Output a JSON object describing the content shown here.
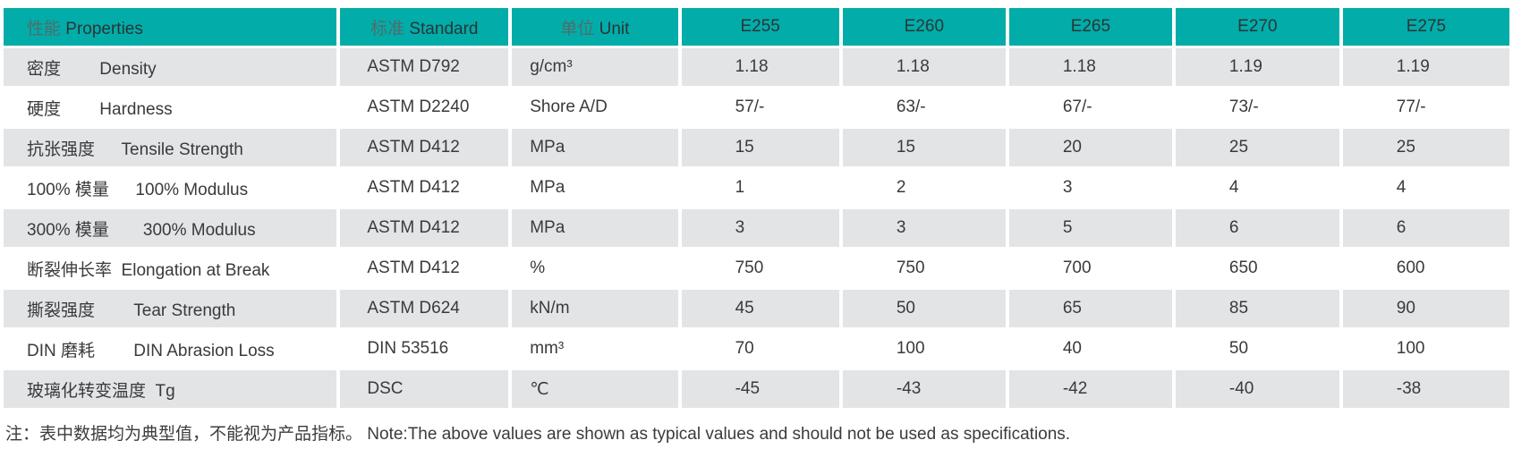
{
  "table": {
    "header": {
      "properties": {
        "cn": "性能",
        "en": "Properties"
      },
      "standard": {
        "cn": "标准",
        "en": "Standard"
      },
      "unit": {
        "cn": "单位",
        "en": "Unit"
      },
      "grades": [
        "E255",
        "E260",
        "E265",
        "E270",
        "E275"
      ]
    },
    "rows": [
      {
        "key": "density",
        "label": "密度　　 Density",
        "standard": "ASTM D792",
        "unit": "g/cm³",
        "values": [
          "1.18",
          "1.18",
          "1.18",
          "1.19",
          "1.19"
        ]
      },
      {
        "key": "hardness",
        "label": "硬度　　 Hardness",
        "standard": "ASTM D2240",
        "unit": "Shore A/D",
        "values": [
          "57/-",
          "63/-",
          "67/-",
          "73/-",
          "77/-"
        ]
      },
      {
        "key": "tensile-strength",
        "label": "抗张强度　  Tensile Strength",
        "standard": "ASTM D412",
        "unit": "MPa",
        "values": [
          "15",
          "15",
          "20",
          "25",
          "25"
        ]
      },
      {
        "key": "modulus-100",
        "label": "100% 模量　  100% Modulus",
        "standard": "ASTM D412",
        "unit": "MPa",
        "values": [
          "1",
          "2",
          "3",
          "4",
          "4"
        ]
      },
      {
        "key": "modulus-300",
        "label": "300% 模量　　300% Modulus",
        "standard": "ASTM D412",
        "unit": "MPa",
        "values": [
          "3",
          "3",
          "5",
          "6",
          "6"
        ]
      },
      {
        "key": "elongation",
        "label": "断裂伸长率  Elongation at Break",
        "standard": "ASTM D412",
        "unit": "%",
        "values": [
          "750",
          "750",
          "700",
          "650",
          "600"
        ]
      },
      {
        "key": "tear-strength",
        "label": "撕裂强度　　 Tear Strength",
        "standard": "ASTM D624",
        "unit": "kN/m",
        "values": [
          "45",
          "50",
          "65",
          "85",
          "90"
        ]
      },
      {
        "key": "din-abrasion",
        "label": "DIN 磨耗　　 DIN Abrasion Loss",
        "standard": "DIN 53516",
        "unit": "mm³",
        "values": [
          "70",
          "100",
          "40",
          "50",
          "100"
        ]
      },
      {
        "key": "tg",
        "label": "玻璃化转变温度  Tg",
        "standard": "DSC",
        "unit": "℃",
        "values": [
          "-45",
          "-43",
          "-42",
          "-40",
          "-38"
        ]
      }
    ]
  },
  "note": "注：表中数据均为典型值，不能视为产品指标。 Note:The above values are shown as typical values and should not be used as specifications.",
  "colors": {
    "header_bg": "#02aca9",
    "stripe_bg": "#e3e4e6",
    "body_text": "#3a3a3c"
  }
}
